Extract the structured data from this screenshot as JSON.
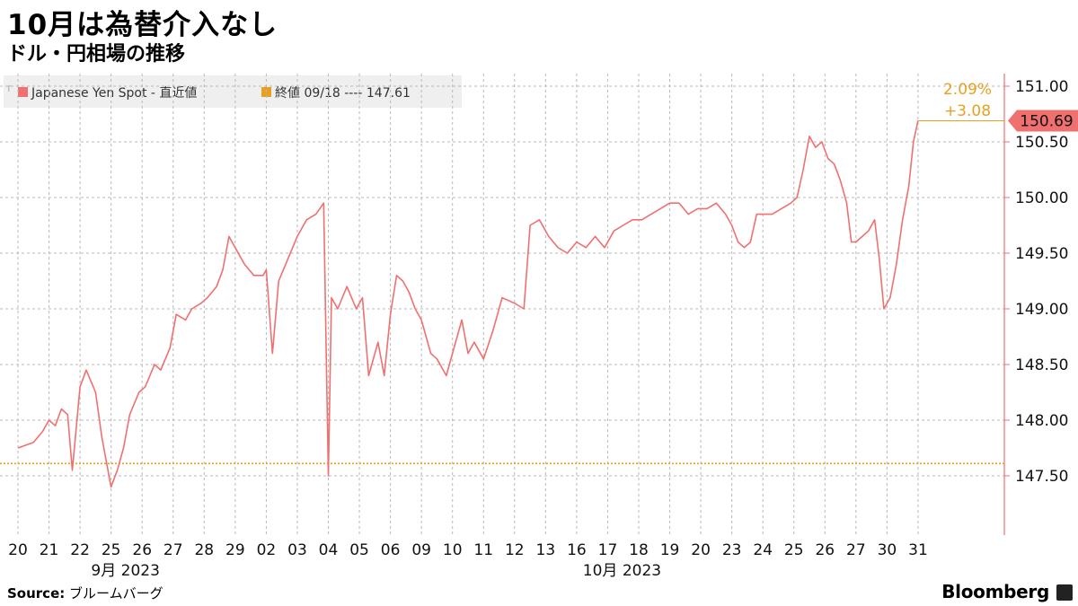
{
  "header": {
    "title": "10月は為替介入なし",
    "subtitle": "ドル・円相場の推移"
  },
  "legend": {
    "series_label": "Japanese Yen Spot - 直近値",
    "ref_label": "終値 09/18 ---- 147.61"
  },
  "annotations": {
    "pct_change": "2.09%",
    "abs_change": "+3.08",
    "last_value": "150.69"
  },
  "footer": {
    "source_label": "Source:",
    "source_text": "ブルームバーグ",
    "brand": "Bloomberg"
  },
  "colors": {
    "series": "#f07070",
    "reference": "#e8a020",
    "axis": "#f07070",
    "grid": "#b8b8b8"
  },
  "chart_data": {
    "type": "line",
    "title": "10月は為替介入なし",
    "subtitle": "ドル・円相場の推移",
    "xlabel": "",
    "ylabel": "",
    "ylim": [
      147.0,
      151.1
    ],
    "y_ticks": [
      "151.00",
      "150.50",
      "150.00",
      "149.50",
      "149.00",
      "148.50",
      "148.00",
      "147.50"
    ],
    "x_ticks": [
      "20",
      "21",
      "22",
      "25",
      "26",
      "27",
      "28",
      "29",
      "02",
      "03",
      "04",
      "05",
      "06",
      "09",
      "10",
      "11",
      "12",
      "13",
      "16",
      "17",
      "18",
      "19",
      "20",
      "23",
      "24",
      "25",
      "26",
      "27",
      "30",
      "31"
    ],
    "month_labels": [
      {
        "text": "9月 2023",
        "at": "25"
      },
      {
        "text": "10月 2023",
        "at": "17"
      }
    ],
    "grid": true,
    "legend_position": "top-left",
    "reference_line": {
      "name": "終値 09/18",
      "value": 147.61
    },
    "last_value": 150.69,
    "change_pct": "2.09%",
    "change_abs": "+3.08",
    "series": [
      {
        "name": "Japanese Yen Spot - 直近値",
        "points": [
          [
            0.0,
            147.75
          ],
          [
            0.5,
            147.8
          ],
          [
            0.8,
            147.9
          ],
          [
            1.0,
            148.0
          ],
          [
            1.2,
            147.95
          ],
          [
            1.4,
            148.1
          ],
          [
            1.6,
            148.05
          ],
          [
            1.75,
            147.55
          ],
          [
            2.0,
            148.3
          ],
          [
            2.2,
            148.45
          ],
          [
            2.5,
            148.25
          ],
          [
            2.7,
            147.85
          ],
          [
            3.0,
            147.4
          ],
          [
            3.2,
            147.55
          ],
          [
            3.4,
            147.75
          ],
          [
            3.6,
            148.05
          ],
          [
            3.9,
            148.25
          ],
          [
            4.1,
            148.3
          ],
          [
            4.4,
            148.5
          ],
          [
            4.6,
            148.45
          ],
          [
            4.9,
            148.65
          ],
          [
            5.1,
            148.95
          ],
          [
            5.4,
            148.9
          ],
          [
            5.6,
            149.0
          ],
          [
            5.9,
            149.05
          ],
          [
            6.1,
            149.1
          ],
          [
            6.4,
            149.2
          ],
          [
            6.6,
            149.35
          ],
          [
            6.8,
            149.65
          ],
          [
            7.0,
            149.55
          ],
          [
            7.3,
            149.4
          ],
          [
            7.6,
            149.3
          ],
          [
            7.9,
            149.3
          ],
          [
            8.0,
            149.35
          ],
          [
            8.2,
            148.6
          ],
          [
            8.4,
            149.25
          ],
          [
            8.7,
            149.45
          ],
          [
            9.0,
            149.65
          ],
          [
            9.3,
            149.8
          ],
          [
            9.6,
            149.85
          ],
          [
            9.85,
            149.95
          ],
          [
            10.0,
            147.5
          ],
          [
            10.1,
            149.1
          ],
          [
            10.3,
            149.0
          ],
          [
            10.6,
            149.2
          ],
          [
            10.9,
            149.0
          ],
          [
            11.1,
            149.1
          ],
          [
            11.3,
            148.4
          ],
          [
            11.6,
            148.7
          ],
          [
            11.8,
            148.4
          ],
          [
            12.0,
            148.95
          ],
          [
            12.2,
            149.3
          ],
          [
            12.4,
            149.25
          ],
          [
            12.6,
            149.15
          ],
          [
            12.8,
            149.0
          ],
          [
            13.0,
            148.9
          ],
          [
            13.3,
            148.6
          ],
          [
            13.5,
            148.55
          ],
          [
            13.8,
            148.4
          ],
          [
            14.0,
            148.6
          ],
          [
            14.3,
            148.9
          ],
          [
            14.5,
            148.6
          ],
          [
            14.7,
            148.7
          ],
          [
            15.0,
            148.55
          ],
          [
            15.3,
            148.8
          ],
          [
            15.6,
            149.1
          ],
          [
            16.0,
            149.05
          ],
          [
            16.3,
            149.0
          ],
          [
            16.5,
            149.75
          ],
          [
            16.8,
            149.8
          ],
          [
            17.1,
            149.65
          ],
          [
            17.4,
            149.55
          ],
          [
            17.7,
            149.5
          ],
          [
            18.0,
            149.6
          ],
          [
            18.3,
            149.55
          ],
          [
            18.6,
            149.65
          ],
          [
            18.9,
            149.55
          ],
          [
            19.2,
            149.7
          ],
          [
            19.5,
            149.75
          ],
          [
            19.8,
            149.8
          ],
          [
            20.1,
            149.8
          ],
          [
            20.4,
            149.85
          ],
          [
            20.7,
            149.9
          ],
          [
            21.0,
            149.95
          ],
          [
            21.3,
            149.95
          ],
          [
            21.6,
            149.85
          ],
          [
            21.9,
            149.9
          ],
          [
            22.2,
            149.9
          ],
          [
            22.5,
            149.95
          ],
          [
            22.8,
            149.85
          ],
          [
            23.0,
            149.75
          ],
          [
            23.2,
            149.6
          ],
          [
            23.4,
            149.55
          ],
          [
            23.6,
            149.6
          ],
          [
            23.8,
            149.85
          ],
          [
            24.0,
            149.85
          ],
          [
            24.3,
            149.85
          ],
          [
            24.6,
            149.9
          ],
          [
            24.9,
            149.95
          ],
          [
            25.1,
            150.0
          ],
          [
            25.3,
            150.25
          ],
          [
            25.5,
            150.55
          ],
          [
            25.7,
            150.45
          ],
          [
            25.9,
            150.5
          ],
          [
            26.1,
            150.35
          ],
          [
            26.3,
            150.3
          ],
          [
            26.5,
            150.15
          ],
          [
            26.7,
            149.95
          ],
          [
            26.85,
            149.6
          ],
          [
            27.0,
            149.6
          ],
          [
            27.2,
            149.65
          ],
          [
            27.4,
            149.7
          ],
          [
            27.6,
            149.8
          ],
          [
            27.75,
            149.45
          ],
          [
            27.9,
            149.0
          ],
          [
            28.1,
            149.1
          ],
          [
            28.3,
            149.4
          ],
          [
            28.5,
            149.8
          ],
          [
            28.7,
            150.1
          ],
          [
            28.85,
            150.5
          ],
          [
            29.0,
            150.69
          ]
        ]
      }
    ]
  }
}
